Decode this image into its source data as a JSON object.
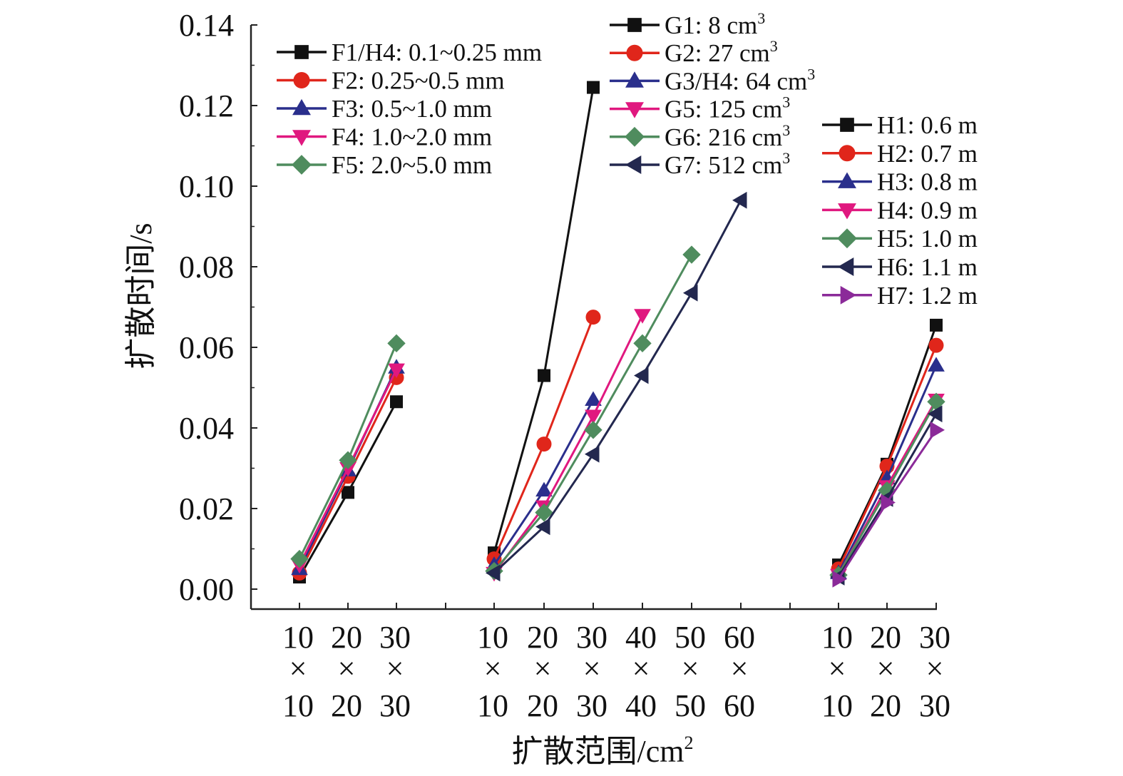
{
  "chart_data": {
    "type": "line",
    "ylabel": "扩散时间/s",
    "xlabel_main": "扩散范围/cm",
    "xlabel_sup": "2",
    "ylim": [
      0,
      0.14
    ],
    "y_ticks": [
      "0.00",
      "0.02",
      "0.04",
      "0.06",
      "0.08",
      "0.10",
      "0.12",
      "0.14"
    ],
    "grid": false,
    "groups": [
      {
        "id": "F",
        "categories": [
          {
            "top": "10",
            "mid": "×",
            "bot": "10"
          },
          {
            "top": "20",
            "mid": "×",
            "bot": "20"
          },
          {
            "top": "30",
            "mid": "×",
            "bot": "30"
          }
        ],
        "series": [
          {
            "name": "F1/H4: 0.1~0.25 mm",
            "sup": "",
            "color": "#111111",
            "marker": "square",
            "values": [
              0.003,
              0.024,
              0.0465
            ]
          },
          {
            "name": "F2: 0.25~0.5 mm",
            "sup": "",
            "color": "#e0261b",
            "marker": "circle",
            "values": [
              0.004,
              0.028,
              0.0525
            ]
          },
          {
            "name": "F3: 0.5~1.0 mm",
            "sup": "",
            "color": "#2a2f8c",
            "marker": "triangle-up",
            "values": [
              0.005,
              0.0295,
              0.055
            ]
          },
          {
            "name": "F4: 1.0~2.0 mm",
            "sup": "",
            "color": "#e0187f",
            "marker": "triangle-down",
            "values": [
              0.006,
              0.03,
              0.0545
            ]
          },
          {
            "name": "F5: 2.0~5.0 mm",
            "sup": "",
            "color": "#4f8c5e",
            "marker": "diamond",
            "values": [
              0.0075,
              0.032,
              0.061
            ]
          }
        ]
      },
      {
        "id": "G",
        "categories": [
          {
            "top": "10",
            "mid": "×",
            "bot": "10"
          },
          {
            "top": "20",
            "mid": "×",
            "bot": "20"
          },
          {
            "top": "30",
            "mid": "×",
            "bot": "30"
          },
          {
            "top": "40",
            "mid": "×",
            "bot": "40"
          },
          {
            "top": "50",
            "mid": "×",
            "bot": "50"
          },
          {
            "top": "60",
            "mid": "×",
            "bot": "60"
          }
        ],
        "series": [
          {
            "name": "G1: 8 cm",
            "sup": "3",
            "color": "#111111",
            "marker": "square",
            "values": [
              0.009,
              0.053,
              0.1245,
              null,
              null,
              null
            ]
          },
          {
            "name": "G2: 27 cm",
            "sup": "3",
            "color": "#e0261b",
            "marker": "circle",
            "values": [
              0.0075,
              0.036,
              0.0675,
              null,
              null,
              null
            ]
          },
          {
            "name": "G3/H4: 64 cm",
            "sup": "3",
            "color": "#2a2f8c",
            "marker": "triangle-up",
            "values": [
              0.006,
              0.0245,
              0.047,
              null,
              null,
              null
            ]
          },
          {
            "name": "G5: 125 cm",
            "sup": "3",
            "color": "#e0187f",
            "marker": "triangle-down",
            "values": [
              0.004,
              0.0205,
              0.043,
              0.068,
              null,
              null
            ]
          },
          {
            "name": "G6: 216 cm",
            "sup": "3",
            "color": "#4f8c5e",
            "marker": "diamond",
            "values": [
              0.0045,
              0.019,
              0.0395,
              0.061,
              0.083,
              null
            ]
          },
          {
            "name": "G7: 512 cm",
            "sup": "3",
            "color": "#23284f",
            "marker": "triangle-left",
            "values": [
              0.004,
              0.0155,
              0.0335,
              0.053,
              0.0735,
              0.0965
            ]
          }
        ]
      },
      {
        "id": "H",
        "categories": [
          {
            "top": "10",
            "mid": "×",
            "bot": "10"
          },
          {
            "top": "20",
            "mid": "×",
            "bot": "20"
          },
          {
            "top": "30",
            "mid": "×",
            "bot": "30"
          }
        ],
        "series": [
          {
            "name": "H1: 0.6 m",
            "sup": "",
            "color": "#111111",
            "marker": "square",
            "values": [
              0.006,
              0.031,
              0.0655
            ]
          },
          {
            "name": "H2: 0.7 m",
            "sup": "",
            "color": "#e0261b",
            "marker": "circle",
            "values": [
              0.005,
              0.0305,
              0.0605
            ]
          },
          {
            "name": "H3: 0.8 m",
            "sup": "",
            "color": "#2a2f8c",
            "marker": "triangle-up",
            "values": [
              0.004,
              0.0275,
              0.0555
            ]
          },
          {
            "name": "H4: 0.9 m",
            "sup": "",
            "color": "#e0187f",
            "marker": "triangle-down",
            "values": [
              0.0035,
              0.0255,
              0.047
            ]
          },
          {
            "name": "H5: 1.0 m",
            "sup": "",
            "color": "#4f8c5e",
            "marker": "diamond",
            "values": [
              0.0035,
              0.0245,
              0.0465
            ]
          },
          {
            "name": "H6: 1.1 m",
            "sup": "",
            "color": "#23284f",
            "marker": "triangle-left",
            "values": [
              0.003,
              0.0225,
              0.0435
            ]
          },
          {
            "name": "H7: 1.2 m",
            "sup": "",
            "color": "#8b2a99",
            "marker": "triangle-right",
            "values": [
              0.0025,
              0.0215,
              0.0395
            ]
          }
        ]
      }
    ]
  }
}
